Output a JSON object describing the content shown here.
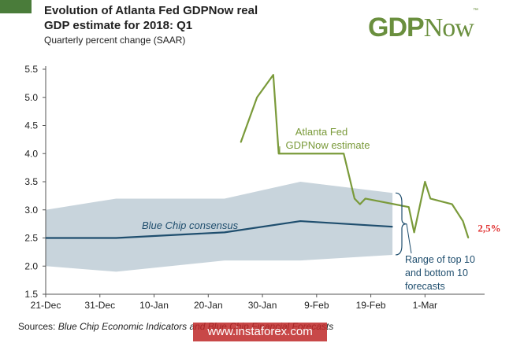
{
  "header": {
    "title_line1": "Evolution of Atlanta Fed GDPNow real",
    "title_line2": "GDP estimate for 2018: Q1",
    "subtitle": "Quarterly percent change (SAAR)"
  },
  "logo": {
    "gdp": "GDP",
    "now": "Now",
    "tm": "™"
  },
  "source": {
    "prefix": "Sources:",
    "text": "Blue Chip Economic Indicators and Blue Chip Financial Forecasts"
  },
  "watermark": "www.instaforex.com",
  "colors": {
    "gdpnow": "#7a9a3a",
    "blue_chip": "#1f4e6e",
    "range_fill": "#c8d4dc",
    "last_value": "#e03030",
    "accent": "#4a7c3a"
  },
  "chart_data": {
    "type": "line",
    "title": "Evolution of Atlanta Fed GDPNow real GDP estimate for 2018: Q1",
    "ylabel": "Quarterly percent change (SAAR)",
    "ylim": [
      1.5,
      5.5
    ],
    "yticks": [
      "1.5",
      "2.0",
      "2.5",
      "3.0",
      "3.5",
      "4.0",
      "4.5",
      "5.0",
      "5.5"
    ],
    "xlim": [
      "2017-12-21",
      "2018-03-12"
    ],
    "xticks": [
      {
        "date": "2017-12-21",
        "label": "21-Dec"
      },
      {
        "date": "2017-12-31",
        "label": "31-Dec"
      },
      {
        "date": "2018-01-10",
        "label": "10-Jan"
      },
      {
        "date": "2018-01-20",
        "label": "20-Jan"
      },
      {
        "date": "2018-01-30",
        "label": "30-Jan"
      },
      {
        "date": "2018-02-09",
        "label": "9-Feb"
      },
      {
        "date": "2018-02-19",
        "label": "19-Feb"
      },
      {
        "date": "2018-03-01",
        "label": "1-Mar"
      }
    ],
    "grid": false,
    "series": [
      {
        "name": "Atlanta Fed GDPNow estimate",
        "label_lines": [
          "Atlanta Fed",
          "GDPNow estimate"
        ],
        "points": [
          [
            "2018-01-26",
            4.2
          ],
          [
            "2018-01-29",
            5.0
          ],
          [
            "2018-02-01",
            5.4
          ],
          [
            "2018-02-02",
            4.0
          ],
          [
            "2018-02-09",
            4.0
          ],
          [
            "2018-02-14",
            4.0
          ],
          [
            "2018-02-16",
            3.2
          ],
          [
            "2018-02-17",
            3.1
          ],
          [
            "2018-02-18",
            3.2
          ],
          [
            "2018-02-26",
            3.05
          ],
          [
            "2018-02-27",
            2.6
          ],
          [
            "2018-03-01",
            3.5
          ],
          [
            "2018-03-02",
            3.2
          ],
          [
            "2018-03-06",
            3.1
          ],
          [
            "2018-03-08",
            2.8
          ],
          [
            "2018-03-09",
            2.5
          ]
        ]
      },
      {
        "name": "Blue Chip consensus",
        "label_lines": [
          "Blue Chip consensus"
        ],
        "points": [
          [
            "2017-12-21",
            2.5
          ],
          [
            "2018-01-03",
            2.5
          ],
          [
            "2018-01-23",
            2.6
          ],
          [
            "2018-02-06",
            2.8
          ],
          [
            "2018-02-23",
            2.7
          ]
        ]
      }
    ],
    "range": {
      "name": "Range of top 10 and bottom 10 forecasts",
      "label_lines": [
        "Range of top 10",
        "and bottom 10",
        "forecasts"
      ],
      "upper": [
        [
          "2017-12-21",
          3.0
        ],
        [
          "2018-01-03",
          3.2
        ],
        [
          "2018-01-23",
          3.2
        ],
        [
          "2018-02-06",
          3.5
        ],
        [
          "2018-02-23",
          3.3
        ]
      ],
      "lower": [
        [
          "2017-12-21",
          2.0
        ],
        [
          "2018-01-03",
          1.9
        ],
        [
          "2018-01-23",
          2.1
        ],
        [
          "2018-02-06",
          2.1
        ],
        [
          "2018-02-23",
          2.2
        ]
      ]
    },
    "annotations": [
      {
        "text": "2,5%",
        "date": "2018-03-09",
        "value": 2.5
      }
    ]
  }
}
